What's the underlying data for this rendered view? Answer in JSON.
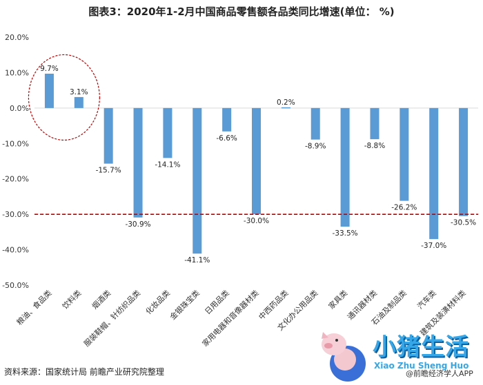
{
  "chart_data": {
    "type": "bar",
    "title": "图表3：2020年1-2月中国商品零售额各品类同比增速(单位： %)",
    "categories": [
      "粮油、食品类",
      "饮料类",
      "烟酒类",
      "服装鞋帽、针纺织品类",
      "化妆品类",
      "金银珠宝类",
      "日用品类",
      "家用电器和音像器材类",
      "中西药品类",
      "文化办公用品类",
      "家具类",
      "通讯器材类",
      "石油及制品类",
      "汽车类",
      "建筑及装潢材料类"
    ],
    "values": [
      9.7,
      3.1,
      -15.7,
      -30.9,
      -14.1,
      -41.1,
      -6.6,
      -30.0,
      0.2,
      -8.9,
      -33.5,
      -8.8,
      -26.2,
      -37.0,
      -30.5
    ],
    "value_labels": [
      "9.7%",
      "3.1%",
      "-15.7%",
      "-30.9%",
      "-14.1%",
      "-41.1%",
      "-6.6%",
      "-30.0%",
      "0.2%",
      "-8.9%",
      "-33.5%",
      "-8.8%",
      "-26.2%",
      "-37.0%",
      "-30.5%"
    ],
    "ylim": [
      -50,
      20
    ],
    "yticks": [
      20,
      10,
      0,
      -10,
      -20,
      -30,
      -40,
      -50
    ],
    "ytick_labels": [
      "20.0%",
      "10.0%",
      "0.0%",
      "-10.0%",
      "-20.0%",
      "-30.0%",
      "-40.0%",
      "-50.0%"
    ],
    "reference_line": -30,
    "highlighted_categories": [
      0,
      1
    ],
    "grid": false,
    "colors": {
      "bar": "#5b9bd5",
      "reference_line": "#c00000",
      "highlight_ellipse": "#c00000"
    }
  },
  "source": "资料来源：国家统计局 前瞻产业研究院整理",
  "brand": {
    "name": "小猪生活",
    "subtitle": "Xiao Zhu Sheng Huo",
    "credit": "@前瞻经济学人APP"
  }
}
